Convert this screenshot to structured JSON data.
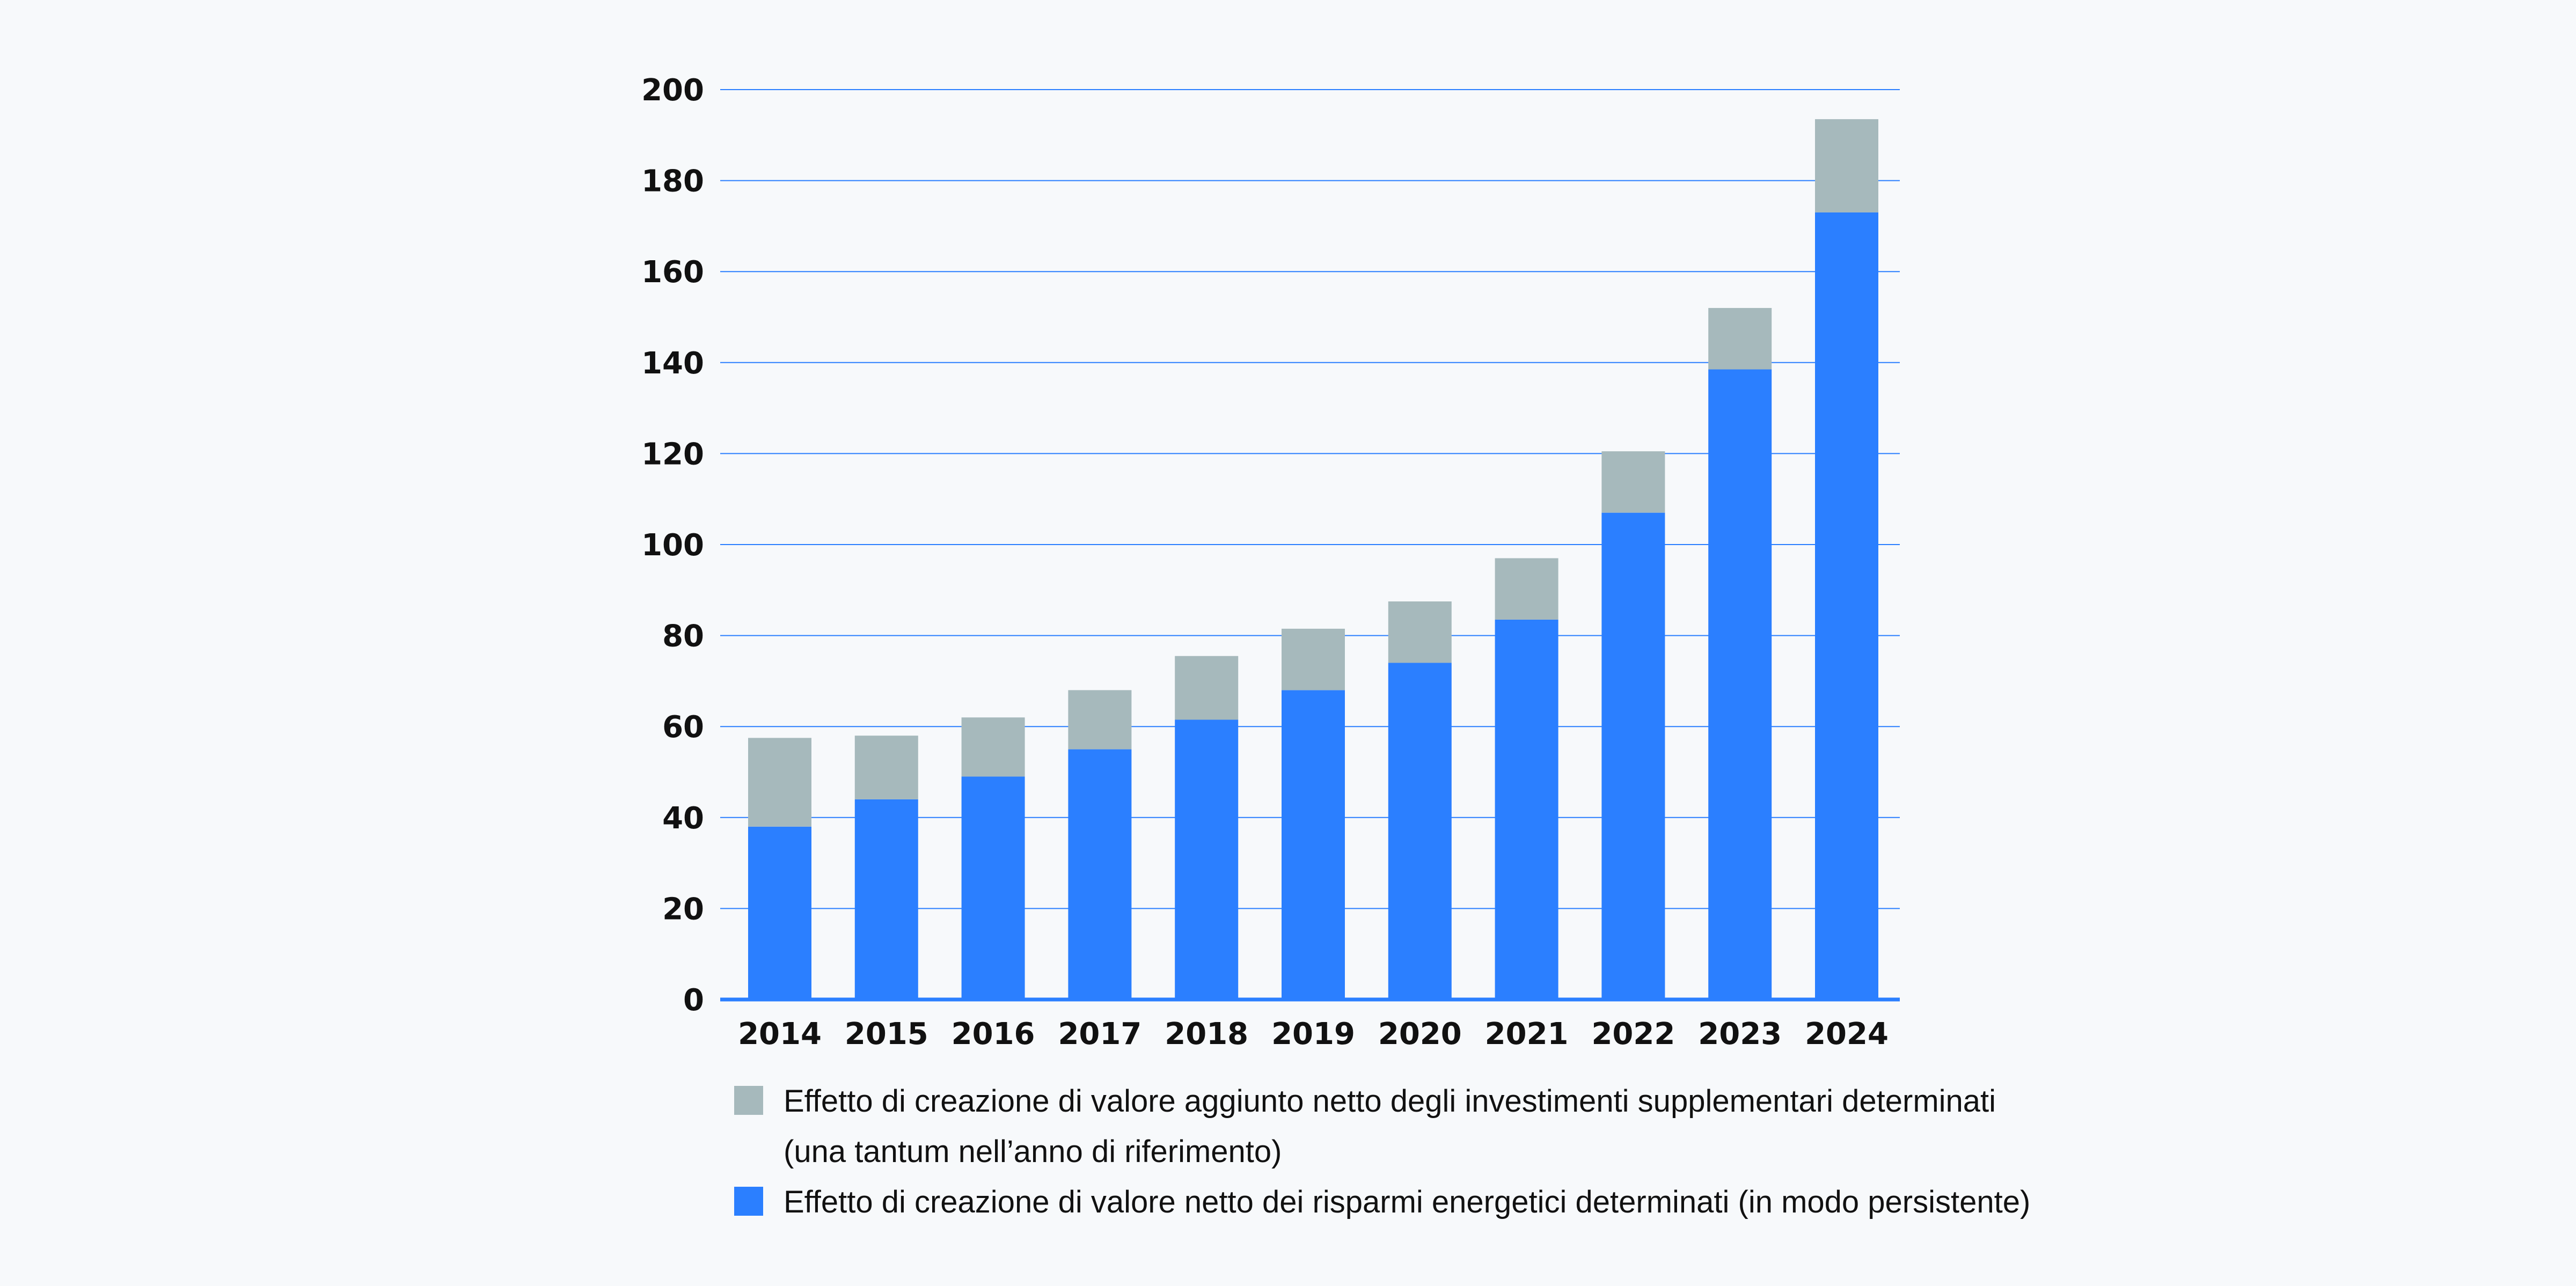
{
  "chart_data": {
    "type": "bar",
    "stacked": true,
    "categories": [
      "2014",
      "2015",
      "2016",
      "2017",
      "2018",
      "2019",
      "2020",
      "2021",
      "2022",
      "2023",
      "2024"
    ],
    "series": [
      {
        "name": "Effetto di creazione di valore netto dei risparmi energetici determinati (in modo persistente)",
        "color": "#2b7fff",
        "values": [
          38,
          44,
          49,
          55,
          61.5,
          68,
          74,
          83.5,
          107,
          138.5,
          173
        ]
      },
      {
        "name": "Effetto di creazione di valore aggiunto netto degli investimenti supplementari determinati (una tantum nell’anno di riferimento)",
        "color": "#a6b9bc",
        "values": [
          19.5,
          14,
          13,
          13,
          14,
          13.5,
          13.5,
          13.5,
          13.5,
          13.5,
          20.5
        ]
      }
    ],
    "ylim": [
      0,
      200
    ],
    "yticks": [
      "0",
      "20",
      "40",
      "60",
      "80",
      "100",
      "120",
      "140",
      "160",
      "180",
      "200"
    ],
    "grid": true,
    "gridColor": "#2b7fff",
    "legend": {
      "placement": "bottom",
      "items": [
        {
          "series": 1,
          "lines": [
            "Effetto di creazione di valore aggiunto netto degli investimenti supplementari determinati",
            "(una tantum nell’anno di riferimento)"
          ]
        },
        {
          "series": 0,
          "lines": [
            "Effetto di creazione di valore netto dei risparmi energetici determinati (in modo persistente)"
          ]
        }
      ]
    },
    "title": "",
    "xlabel": "",
    "ylabel": ""
  }
}
